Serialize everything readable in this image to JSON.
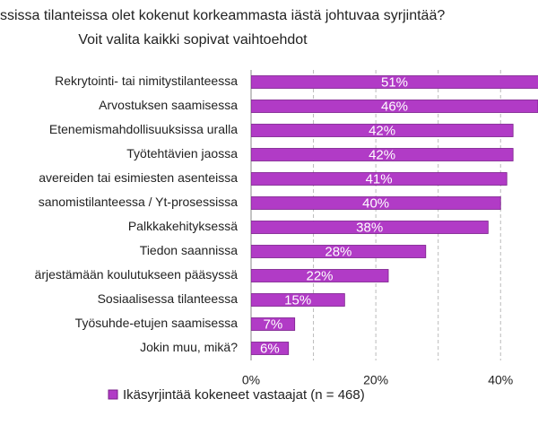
{
  "chart_data": {
    "type": "hbar",
    "title": [
      "ssissa tilanteissa olet kokenut korkeammasta iästä johtuvaa syrjintää?",
      "Voit valita kaikki sopivat vaihtoehdot"
    ],
    "categories": [
      "Rekrytointi- tai nimitystilanteessa",
      "Arvostuksen saamisessa",
      "Etenemismahdollisuuksissa uralla",
      "Työtehtävien jaossa",
      "avereiden tai esimiesten asenteissa",
      "sanomistilanteessa / Yt-prosessissa",
      "Palkkakehityksessä",
      "Tiedon saannissa",
      "ärjestämään koulutukseen pääsyssä",
      "Sosiaalisessa tilanteessa",
      "Työsuhde-etujen saamisessa",
      "Jokin muu, mikä?"
    ],
    "series": [
      {
        "name": "Ikäsyrjintää kokeneet vastaajat (n = 468)",
        "color": "#b13bc6",
        "values": [
          51,
          46,
          42,
          42,
          41,
          40,
          38,
          28,
          22,
          15,
          7,
          6
        ],
        "value_labels": [
          "51%",
          "46%",
          "42%",
          "42%",
          "41%",
          "40%",
          "38%",
          "28%",
          "22%",
          "15%",
          "7%",
          "6%"
        ]
      }
    ],
    "xlim": [
      0,
      46
    ],
    "xticks": [
      {
        "value": 0,
        "label": "0%"
      },
      {
        "value": 20,
        "label": "20%"
      },
      {
        "value": 40,
        "label": "40%"
      }
    ],
    "minor_xticks": [
      10,
      30
    ],
    "grid": true,
    "legend": "bottom"
  }
}
